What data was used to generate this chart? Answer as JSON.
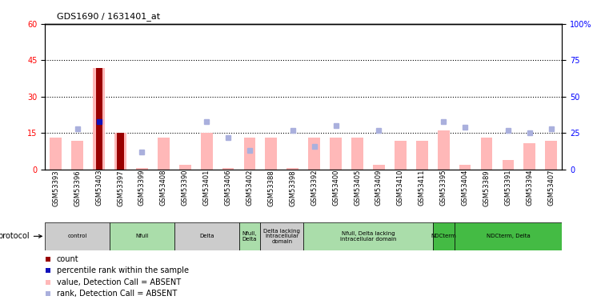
{
  "title": "GDS1690 / 1631401_at",
  "samples": [
    "GSM53393",
    "GSM53396",
    "GSM53403",
    "GSM53397",
    "GSM53399",
    "GSM53408",
    "GSM53390",
    "GSM53401",
    "GSM53406",
    "GSM53402",
    "GSM53388",
    "GSM53398",
    "GSM53392",
    "GSM53400",
    "GSM53405",
    "GSM53409",
    "GSM53410",
    "GSM53411",
    "GSM53395",
    "GSM53404",
    "GSM53389",
    "GSM53391",
    "GSM53394",
    "GSM53407"
  ],
  "value_absent": [
    13,
    12,
    42,
    15,
    0.5,
    13,
    2,
    15,
    0.5,
    13,
    13,
    0.5,
    13,
    13,
    13,
    2,
    12,
    12,
    16,
    2,
    13,
    4,
    11,
    12
  ],
  "rank_absent": [
    null,
    28,
    null,
    null,
    12,
    null,
    null,
    33,
    22,
    13,
    null,
    27,
    16,
    30,
    null,
    27,
    null,
    null,
    33,
    29,
    null,
    27,
    25,
    28
  ],
  "count_red": [
    null,
    null,
    42,
    15,
    null,
    null,
    null,
    null,
    null,
    null,
    null,
    null,
    null,
    null,
    null,
    null,
    null,
    null,
    null,
    null,
    null,
    null,
    null,
    null
  ],
  "rank_blue": [
    null,
    null,
    33,
    null,
    null,
    null,
    null,
    null,
    null,
    null,
    null,
    null,
    null,
    null,
    null,
    null,
    null,
    null,
    null,
    null,
    null,
    null,
    null,
    null
  ],
  "protocol_groups": [
    {
      "label": "control",
      "start": 0,
      "end": 3,
      "color": "#cccccc"
    },
    {
      "label": "Nfull",
      "start": 3,
      "end": 6,
      "color": "#aaddaa"
    },
    {
      "label": "Delta",
      "start": 6,
      "end": 9,
      "color": "#cccccc"
    },
    {
      "label": "Nfull,\nDelta",
      "start": 9,
      "end": 10,
      "color": "#aaddaa"
    },
    {
      "label": "Delta lacking\nintracellular\ndomain",
      "start": 10,
      "end": 12,
      "color": "#cccccc"
    },
    {
      "label": "Nfull, Delta lacking\nintracellular domain",
      "start": 12,
      "end": 18,
      "color": "#aaddaa"
    },
    {
      "label": "NDCterm",
      "start": 18,
      "end": 19,
      "color": "#44bb44"
    },
    {
      "label": "NDCterm, Delta",
      "start": 19,
      "end": 24,
      "color": "#44bb44"
    }
  ],
  "ylim_left": [
    0,
    60
  ],
  "ylim_right": [
    0,
    100
  ],
  "yticks_left": [
    0,
    15,
    30,
    45,
    60
  ],
  "yticks_right": [
    0,
    25,
    50,
    75,
    100
  ],
  "ytick_labels_right": [
    "0",
    "25",
    "50",
    "75",
    "100%"
  ],
  "hlines": [
    15,
    30,
    45
  ],
  "bar_pink": "#ffb8b8",
  "bar_lightblue": "#aab0dd",
  "bar_darkred": "#990000",
  "bar_darkblue": "#1111bb",
  "legend_items": [
    {
      "color": "#990000",
      "label": "count"
    },
    {
      "color": "#1111bb",
      "label": "percentile rank within the sample"
    },
    {
      "color": "#ffb8b8",
      "label": "value, Detection Call = ABSENT"
    },
    {
      "color": "#aab0dd",
      "label": "rank, Detection Call = ABSENT"
    }
  ]
}
